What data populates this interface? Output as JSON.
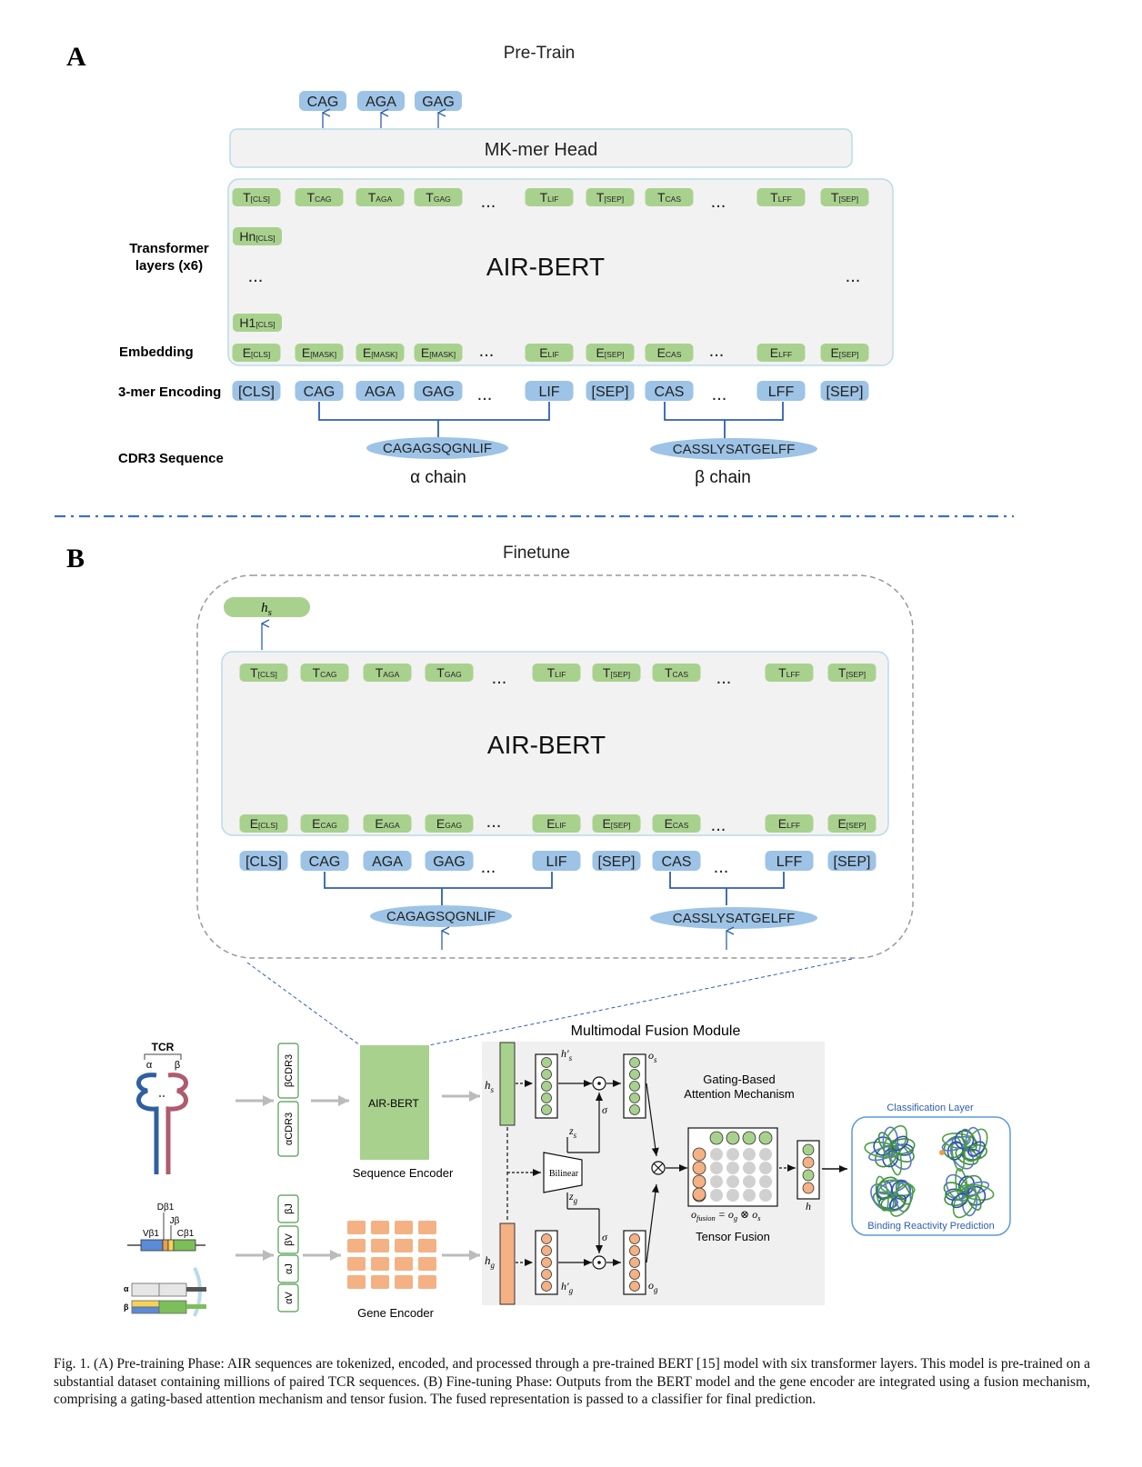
{
  "panelA": {
    "letter": "A",
    "title": "Pre-Train",
    "head_outputs": [
      "CAG",
      "AGA",
      "GAG"
    ],
    "head_label": "MK-mer Head",
    "model_label": "AIR-BERT",
    "ellipsis": "...",
    "t_tokens": [
      {
        "main": "T",
        "sub": "[CLS]"
      },
      {
        "main": "T",
        "sub": "CAG"
      },
      {
        "main": "T",
        "sub": "AGA"
      },
      {
        "main": "T",
        "sub": "GAG"
      },
      {
        "main": "T",
        "sub": "LIF"
      },
      {
        "main": "T",
        "sub": "[SEP]"
      },
      {
        "main": "T",
        "sub": "CAS"
      },
      {
        "main": "T",
        "sub": "LFF"
      },
      {
        "main": "T",
        "sub": "[SEP]"
      }
    ],
    "hidden_tokens": [
      {
        "main": "Hn",
        "sub": "[CLS]"
      },
      {
        "main": "H1",
        "sub": "[CLS]"
      }
    ],
    "e_tokens": [
      {
        "main": "E",
        "sub": "[CLS]"
      },
      {
        "main": "E",
        "sub": "[MASK]"
      },
      {
        "main": "E",
        "sub": "[MASK]"
      },
      {
        "main": "E",
        "sub": "[MASK]"
      },
      {
        "main": "E",
        "sub": "LIF"
      },
      {
        "main": "E",
        "sub": "[SEP]"
      },
      {
        "main": "E",
        "sub": "CAS"
      },
      {
        "main": "E",
        "sub": "LFF"
      },
      {
        "main": "E",
        "sub": "[SEP]"
      }
    ],
    "kmer_tokens": [
      "[CLS]",
      "CAG",
      "AGA",
      "GAG",
      "LIF",
      "[SEP]",
      "CAS",
      "LFF",
      "[SEP]"
    ],
    "row_labels": {
      "transformer_1": "Transformer",
      "transformer_2": "layers (x6)",
      "embedding": "Embedding",
      "encoding": "3-mer Encoding",
      "cdr3": "CDR3 Sequence"
    },
    "alpha_seq": "CAGAGSQGNLIF",
    "beta_seq": "CASSLYSATGELFF",
    "alpha_chain": "α chain",
    "beta_chain": "β chain"
  },
  "panelB": {
    "letter": "B",
    "title": "Finetune",
    "hs_label": "h",
    "hs_sub": "s",
    "model_label": "AIR-BERT",
    "t_tokens": [
      {
        "main": "T",
        "sub": "[CLS]"
      },
      {
        "main": "T",
        "sub": "CAG"
      },
      {
        "main": "T",
        "sub": "AGA"
      },
      {
        "main": "T",
        "sub": "GAG"
      },
      {
        "main": "T",
        "sub": "LIF"
      },
      {
        "main": "T",
        "sub": "[SEP]"
      },
      {
        "main": "T",
        "sub": "CAS"
      },
      {
        "main": "T",
        "sub": "LFF"
      },
      {
        "main": "T",
        "sub": "[SEP]"
      }
    ],
    "e_tokens": [
      {
        "main": "E",
        "sub": "[CLS]"
      },
      {
        "main": "E",
        "sub": "CAG"
      },
      {
        "main": "E",
        "sub": "AGA"
      },
      {
        "main": "E",
        "sub": "GAG"
      },
      {
        "main": "E",
        "sub": "LIF"
      },
      {
        "main": "E",
        "sub": "[SEP]"
      },
      {
        "main": "E",
        "sub": "CAS"
      },
      {
        "main": "E",
        "sub": "LFF"
      },
      {
        "main": "E",
        "sub": "[SEP]"
      }
    ],
    "kmer_tokens": [
      "[CLS]",
      "CAG",
      "AGA",
      "GAG",
      "LIF",
      "[SEP]",
      "CAS",
      "LFF",
      "[SEP]"
    ],
    "alpha_seq": "CAGAGSQGNLIF",
    "beta_seq": "CASSLYSATGELFF"
  },
  "bottom": {
    "tcr_label": "TCR",
    "tcr_alpha": "α",
    "tcr_beta": "β",
    "gene_labels": {
      "d": "Dβ1",
      "j": "Jβ",
      "v": "Vβ1",
      "c": "Cβ1",
      "alpha": "α",
      "beta": "β"
    },
    "seq_inputs": [
      "βCDR3",
      "αCDR3"
    ],
    "gene_inputs": [
      "βJ",
      "βV",
      "αJ",
      "αV"
    ],
    "seq_encoder_box": "AIR-BERT",
    "seq_encoder_label": "Sequence Encoder",
    "gene_encoder_label": "Gene Encoder",
    "fusion_title": "Multimodal Fusion Module",
    "gating_1": "Gating-Based",
    "gating_2": "Attention Mechanism",
    "bilinear": "Bilinear",
    "tensor_fusion": "Tensor Fusion",
    "math": {
      "hs": "h",
      "hs_sub": "s",
      "hg": "h",
      "hg_sub": "g",
      "hps": "h′",
      "hps_sub": "s",
      "hpg": "h′",
      "hpg_sub": "g",
      "os": "o",
      "os_sub": "s",
      "og": "o",
      "og_sub": "g",
      "zs": "z",
      "zs_sub": "s",
      "zg": "z",
      "zg_sub": "g",
      "sigma": "σ",
      "h": "h",
      "fusion_eq": "o",
      "fusion_eq_sub": "fusion",
      "fusion_eq_rest": " = o",
      "fusion_eq_sub2": "g",
      "fusion_eq_op": " ⊗ o",
      "fusion_eq_sub3": "s"
    },
    "classification_title": "Classification Layer",
    "classification_label": "Binding Reactivity Prediction"
  },
  "caption": "Fig. 1.  (A) Pre-training Phase: AIR sequences are tokenized, encoded, and processed through a pre-trained BERT [15] model with six transformer layers. This model is pre-trained on a substantial dataset containing millions of paired TCR sequences. (B) Fine-tuning Phase: Outputs from the BERT model and the gene encoder are integrated using a fusion mechanism, comprising a gating-based attention mechanism and tensor fusion. The fused representation is passed to a classifier for final prediction.",
  "colors": {
    "green": "#a9d18e",
    "blue": "#9dc3e6",
    "orange": "#f4b183",
    "panel": "#f2f2f2",
    "line": "#2e5fb0"
  }
}
